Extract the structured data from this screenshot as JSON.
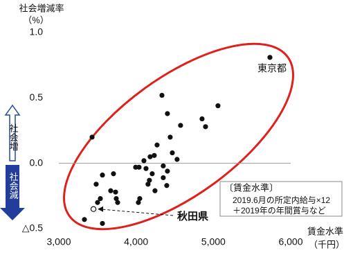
{
  "chart_data": {
    "type": "scatter",
    "y_label": "社会増減率",
    "y_unit": "（%）",
    "x_label": "賃金水準",
    "x_unit": "（千円）",
    "xlim": [
      3000,
      6000
    ],
    "xticks": [
      {
        "value": 3000,
        "label": "3,000"
      },
      {
        "value": 4000,
        "label": "4,000"
      },
      {
        "value": 5000,
        "label": "5,000"
      },
      {
        "value": 6000,
        "label": "6,000"
      }
    ],
    "ylim": [
      -0.5,
      1.0
    ],
    "yticks": [
      {
        "value": -0.5,
        "label": "△0.5"
      },
      {
        "value": 0.0,
        "label": "0.0"
      },
      {
        "value": 0.5,
        "label": "0.5"
      },
      {
        "value": 1.0,
        "label": "1.0"
      }
    ],
    "series": [
      {
        "color": "#111111",
        "x": [
          5731,
          5059,
          4853,
          4898,
          4334,
          4405,
          4575,
          3430,
          4441,
          4271,
          4468,
          4530,
          4235,
          4101,
          4181,
          4128,
          3994,
          4038,
          4351,
          4405,
          3564,
          3707,
          4208,
          4351,
          4172,
          4154,
          4396,
          4244,
          3483,
          3671,
          3734,
          3743,
          3761,
          3537,
          3501,
          4047,
          4029,
          3331,
          3564
        ],
        "values": [
          0.81,
          0.44,
          0.34,
          0.28,
          0.52,
          0.38,
          0.29,
          0.2,
          0.2,
          0.14,
          0.08,
          0.03,
          0.06,
          0.02,
          0.05,
          -0.04,
          -0.03,
          -0.03,
          -0.02,
          -0.06,
          -0.09,
          -0.08,
          -0.08,
          -0.11,
          -0.13,
          -0.16,
          -0.17,
          -0.21,
          -0.16,
          -0.21,
          -0.22,
          -0.27,
          -0.3,
          -0.27,
          -0.3,
          -0.27,
          -0.3,
          -0.43,
          -0.46
        ]
      }
    ],
    "highlight": {
      "label": "秋田県",
      "x": 3448,
      "y": -0.35
    },
    "annotations": {
      "tokyo": "東京都",
      "increase": "社会増",
      "decrease": "社会減",
      "note_title": "〔賃金水準〕",
      "note_line1": "2019.6月の所定内給与×12",
      "note_line2": "＋2019年の年間賞与など"
    }
  }
}
